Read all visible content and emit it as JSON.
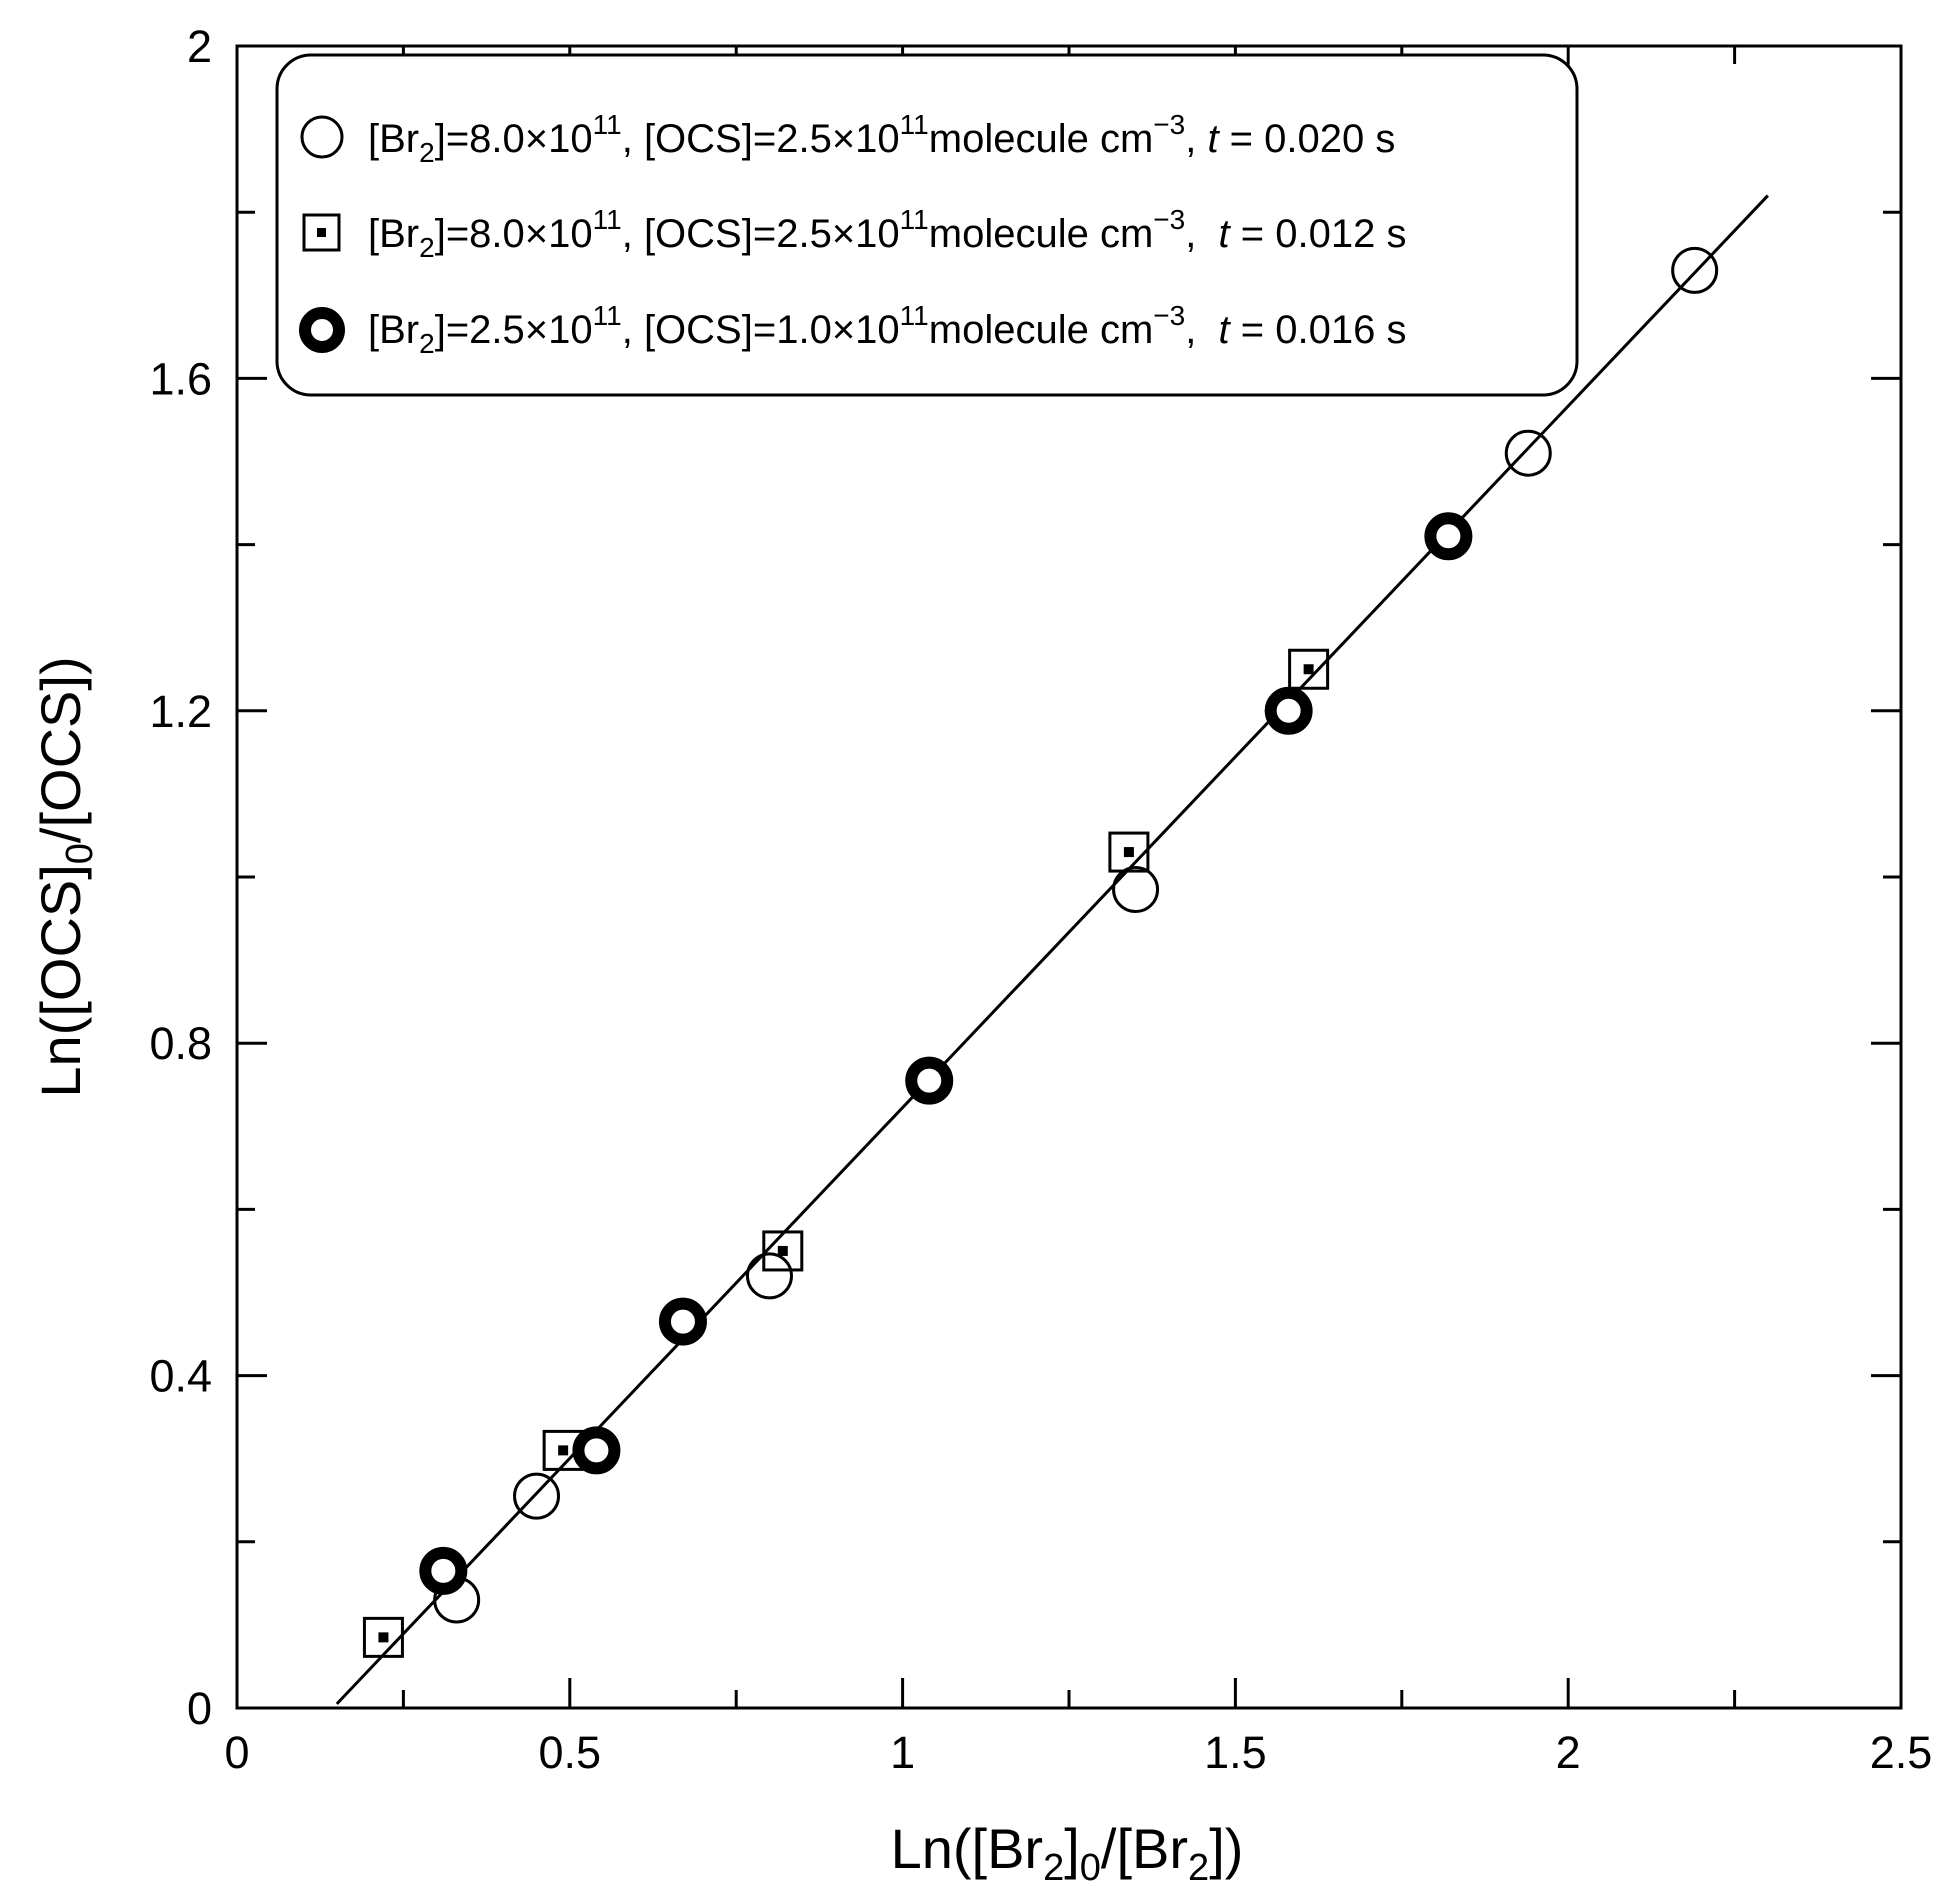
{
  "chart_data": {
    "type": "scatter",
    "title": "",
    "xlabel": {
      "pre": "Ln([Br",
      "sub1": "2",
      "mid1": "]",
      "sub2": "0",
      "mid2": "/[Br",
      "sub3": "2",
      "post": "])"
    },
    "ylabel": {
      "pre": "Ln([OCS]",
      "sub": "0",
      "post": "/[OCS])"
    },
    "xlim": [
      0,
      2.5
    ],
    "ylim": [
      0,
      2
    ],
    "x_ticks": [
      "0",
      "0.5",
      "1",
      "1.5",
      "2",
      "2.5"
    ],
    "y_ticks": [
      "0",
      "0.4",
      "0.8",
      "1.2",
      "1.6",
      "2"
    ],
    "grid": false,
    "legend_position": "top-left",
    "series": [
      {
        "marker": "open-circle",
        "legend": {
          "a": "[Br",
          "b": "2",
          "c": "]=8.0×10",
          "d": "11",
          "e": ", [OCS]=2.5×10",
          "f": "11",
          "g": "molecule cm",
          "h": "−3",
          "i": ", ",
          "t": "t",
          "j": " = 0.020 s"
        },
        "points": [
          [
            0.33,
            0.13
          ],
          [
            0.45,
            0.255
          ],
          [
            0.8,
            0.52
          ],
          [
            1.35,
            0.985
          ],
          [
            1.94,
            1.51
          ],
          [
            2.19,
            1.73
          ]
        ]
      },
      {
        "marker": "dotted-square",
        "legend": {
          "a": "[Br",
          "b": "2",
          "c": "]=8.0×10",
          "d": "11",
          "e": ", [OCS]=2.5×10",
          "f": "11",
          "g": "molecule cm",
          "h": "−3",
          "i": ",  ",
          "t": "t",
          "j": " = 0.012 s"
        },
        "points": [
          [
            0.22,
            0.085
          ],
          [
            0.49,
            0.31
          ],
          [
            0.82,
            0.55
          ],
          [
            1.34,
            1.03
          ],
          [
            1.61,
            1.25
          ]
        ]
      },
      {
        "marker": "thick-circle",
        "legend": {
          "a": "[Br",
          "b": "2",
          "c": "]=2.5×10",
          "d": "11",
          "e": ", [OCS]=1.0×10",
          "f": "11",
          "g": "molecule cm",
          "h": "−3",
          "i": ",  ",
          "t": "t",
          "j": " = 0.016 s"
        },
        "points": [
          [
            0.31,
            0.165
          ],
          [
            0.54,
            0.31
          ],
          [
            0.67,
            0.465
          ],
          [
            1.04,
            0.755
          ],
          [
            1.58,
            1.2
          ],
          [
            1.82,
            1.41
          ]
        ]
      }
    ],
    "fit_line": {
      "x": [
        0.15,
        2.3
      ],
      "y": [
        0.005,
        1.82
      ]
    }
  }
}
